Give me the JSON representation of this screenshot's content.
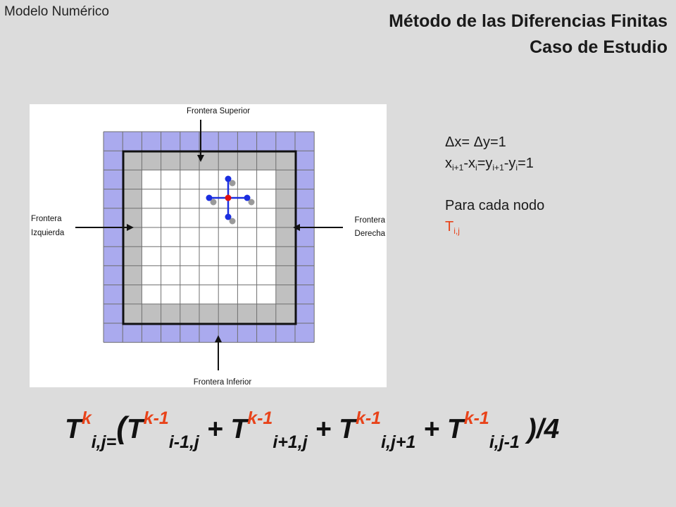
{
  "header": {
    "corner_label": "Modelo Numérico",
    "title_line1": "Método de las Diferencias Finitas",
    "title_line2": "Caso de Estudio"
  },
  "diagram": {
    "labels": {
      "top": "Frontera Superior",
      "left_line1": "Frontera",
      "left_line2": "Izquierda",
      "right_line1": "Frontera",
      "right_line2": "Derecha",
      "bottom": "Frontera Inferior"
    },
    "colors": {
      "outer_ring": "#aaaaee",
      "boundary_ring": "#c0c0c0",
      "interior": "#ffffff",
      "stencil_blue": "#1a2ee0",
      "stencil_red": "#e01010",
      "stencil_gray": "#9a9a9a"
    }
  },
  "info": {
    "line1": "Δx= Δy=1",
    "line2": {
      "x": "x",
      "sub1": "i+1",
      "minus_x": "-x",
      "sub2": "i",
      "eq_y": "=y",
      "sub3": "i+1",
      "minus_y": "-y",
      "sub4": "i",
      "tail": "=1"
    },
    "line3": "Para cada nodo",
    "node": {
      "t": "T",
      "sub": "i,j"
    }
  },
  "equation": {
    "t1": "T",
    "sup1": "k",
    "sub1": "i,j",
    "eq": "=",
    "open": "(",
    "t2": "T",
    "sup2": "k-1",
    "sub2": "i-1,j",
    "plus1": " + ",
    "t3": "T",
    "sup3": "k-1",
    "sub3": "i+1,j",
    "plus2": " + ",
    "t4": "T",
    "sup4": "k-1",
    "sub4": "i,j+1",
    "plus3": " + ",
    "t5": "T",
    "sup5": "k-1",
    "sub5": "i,j-1",
    "close": " )/4"
  }
}
